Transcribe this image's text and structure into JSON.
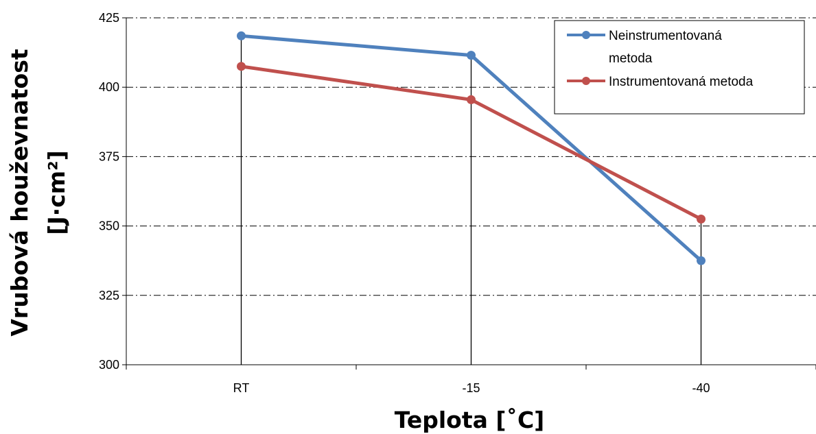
{
  "chart_data": {
    "type": "line",
    "categories": [
      "RT",
      "-15",
      "-40"
    ],
    "series": [
      {
        "name": "Neinstrumentovaná metoda",
        "values": [
          418.5,
          411.5,
          337.5
        ],
        "color": "#4f81bd"
      },
      {
        "name": "Instrumentovaná metoda",
        "values": [
          407.5,
          395.5,
          352.5
        ],
        "color": "#c0504d"
      }
    ],
    "ylim": [
      300,
      425
    ],
    "yticks": [
      300,
      325,
      350,
      375,
      400,
      425
    ],
    "xlabel": "Teplota [˚C]",
    "ylabel_line1": "Vrubová houževnatost",
    "ylabel_line2": "[J·cm²]",
    "legend": {
      "placement": "top-right",
      "entries": [
        {
          "line1": "Neinstrumentovaná",
          "line2": "metoda"
        },
        {
          "line1": "Instrumentovaná metoda"
        }
      ]
    },
    "grid": {
      "horizontal": "dash-dot",
      "vertical_drop_lines": true
    }
  }
}
